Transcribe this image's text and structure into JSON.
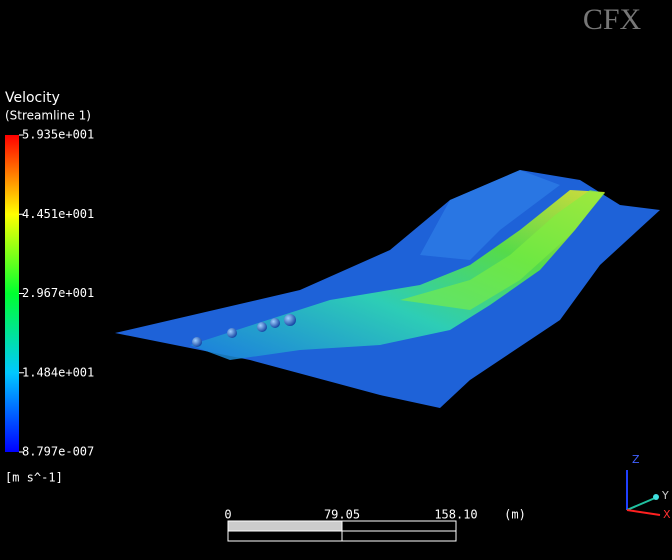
{
  "logo": "CFX",
  "legend": {
    "title": "Velocity",
    "subtitle": "(Streamline 1)",
    "labels": [
      "5.935e+001",
      "4.451e+001",
      "2.967e+001",
      "1.484e+001",
      "8.797e-007"
    ],
    "unit": "[m s^-1]"
  },
  "scale_bar": {
    "labels": [
      "0",
      "79.05",
      "158.10"
    ],
    "unit": "(m)"
  },
  "axes": {
    "z": "Z",
    "y": "Y",
    "x": "X"
  }
}
